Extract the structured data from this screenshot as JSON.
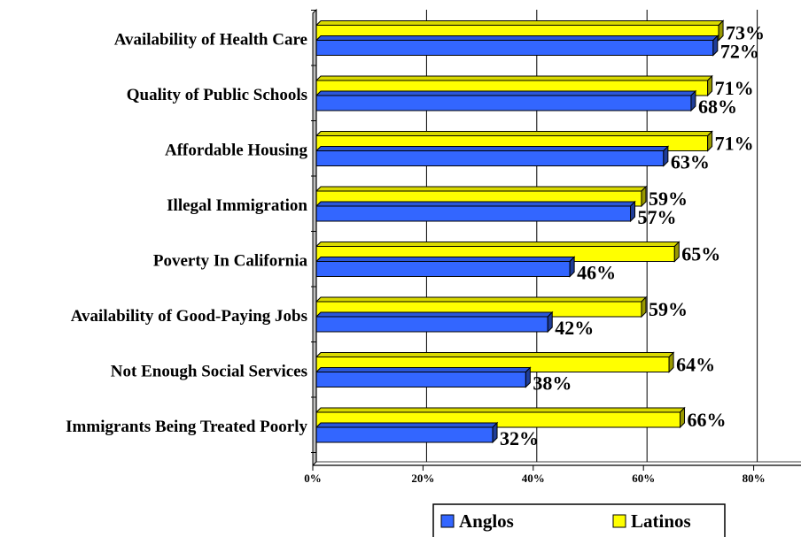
{
  "chart_data": {
    "type": "bar",
    "orientation": "horizontal",
    "categories": [
      "Availability of Health Care",
      "Quality of Public Schools",
      "Affordable Housing",
      "Illegal Immigration",
      "Poverty In California",
      "Availability of Good-Paying Jobs",
      "Not Enough Social Services",
      "Immigrants Being Treated Poorly"
    ],
    "series": [
      {
        "name": "Anglos",
        "color": "#3366ff",
        "values": [
          72,
          68,
          63,
          57,
          46,
          42,
          38,
          32
        ]
      },
      {
        "name": "Latinos",
        "color": "#ffff00",
        "values": [
          73,
          71,
          71,
          59,
          65,
          59,
          64,
          66
        ]
      }
    ],
    "data_labels": {
      "Anglos": [
        "72%",
        "68%",
        "63%",
        "57%",
        "46%",
        "42%",
        "38%",
        "32%"
      ],
      "Latinos": [
        "73%",
        "71%",
        "71%",
        "59%",
        "65%",
        "59%",
        "64%",
        "66%"
      ]
    },
    "x_ticks": [
      0,
      20,
      40,
      60,
      80
    ],
    "x_tick_labels": [
      "0%",
      "20%",
      "40%",
      "60%",
      "80%"
    ],
    "xlim": [
      0,
      80
    ],
    "grid": true,
    "legend_position": "bottom-right",
    "style": "3d"
  }
}
